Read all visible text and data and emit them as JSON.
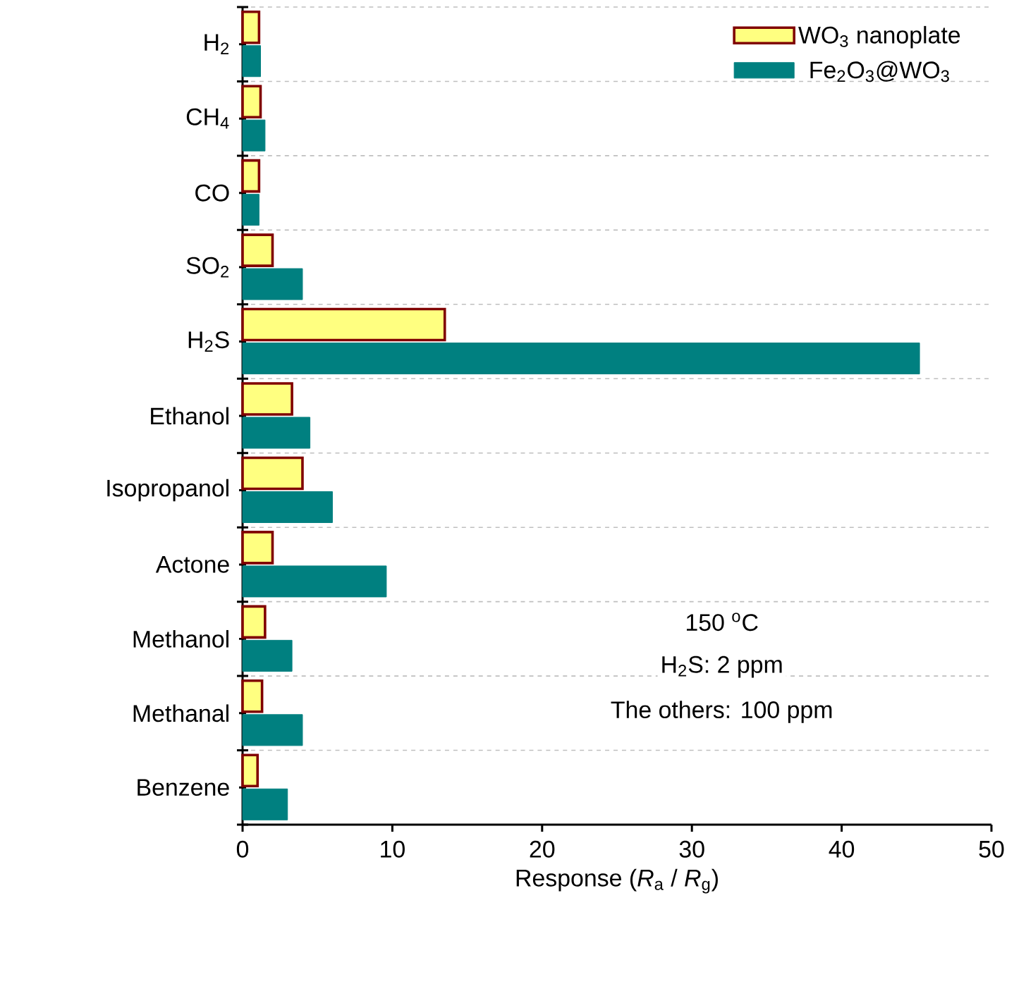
{
  "chart_data": {
    "type": "bar",
    "orientation": "horizontal",
    "categories": [
      "H$_{2}$",
      "CH$_{4}$",
      "CO",
      "SO$_{2}$",
      "H$_{2}$S",
      "Ethanol",
      "Isopropanol",
      "Actone",
      "Methanol",
      "Methanal",
      "Benzene"
    ],
    "series": [
      {
        "name": "WO$_{3}$ nanoplate",
        "color": "#ffff80",
        "values": [
          1.1,
          1.2,
          1.1,
          2.0,
          13.5,
          3.3,
          4.0,
          2.0,
          1.5,
          1.3,
          1.0
        ]
      },
      {
        "name": "Fe$_{2}$O$_{3}$@WO$_{3}$",
        "color": "#008080",
        "values": [
          1.2,
          1.5,
          1.1,
          4.0,
          45.2,
          4.5,
          6.0,
          9.6,
          3.3,
          4.0,
          3.0
        ]
      }
    ],
    "xlim": [
      0,
      50
    ],
    "xticks": [
      0,
      10,
      20,
      30,
      40,
      50
    ],
    "xlabel": "Response (*R*$_{a}$ / *R*$_{g}$)",
    "grid": "y",
    "legend": "top right",
    "annotations": [
      "150 $^{o}$C",
      "H$_{2}$S: 2 ppm",
      "The others: 100 ppm"
    ]
  }
}
